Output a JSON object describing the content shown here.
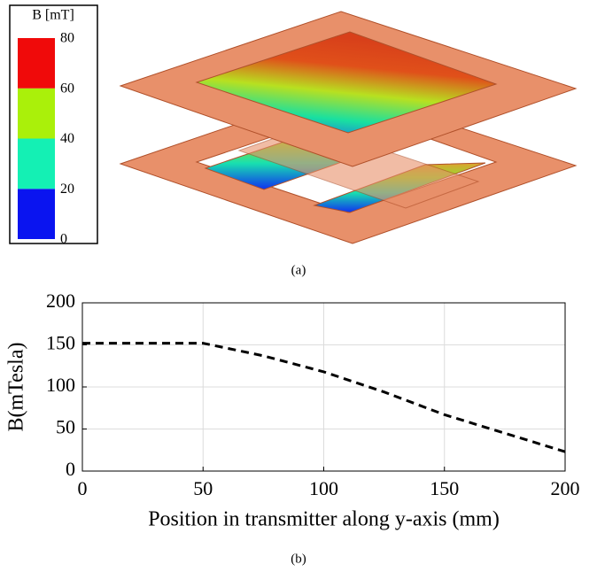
{
  "chart_data": [
    {
      "type": "colorbar",
      "title": "B [mT]",
      "caption": "(a)",
      "ticks": [
        0,
        20,
        40,
        60,
        80
      ],
      "colors": [
        "#0a14f0",
        "#14f0b4",
        "#aaf00a",
        "#f00a0a"
      ]
    },
    {
      "type": "line",
      "caption": "(b)",
      "xlabel": "Position in transmitter along y-axis (mm)",
      "ylabel": "B(mTesla)",
      "x": [
        0,
        50,
        75,
        100,
        125,
        150,
        175,
        200
      ],
      "series": [
        {
          "name": "B",
          "color": "#000000",
          "values": [
            152,
            152,
            137,
            118,
            94,
            67,
            45,
            23
          ]
        }
      ],
      "xlim": [
        0,
        200
      ],
      "xticks": [
        0,
        50,
        100,
        150,
        200
      ],
      "ylim": [
        0,
        200
      ],
      "yticks": [
        0,
        50,
        100,
        150,
        200
      ],
      "grid": true
    }
  ]
}
